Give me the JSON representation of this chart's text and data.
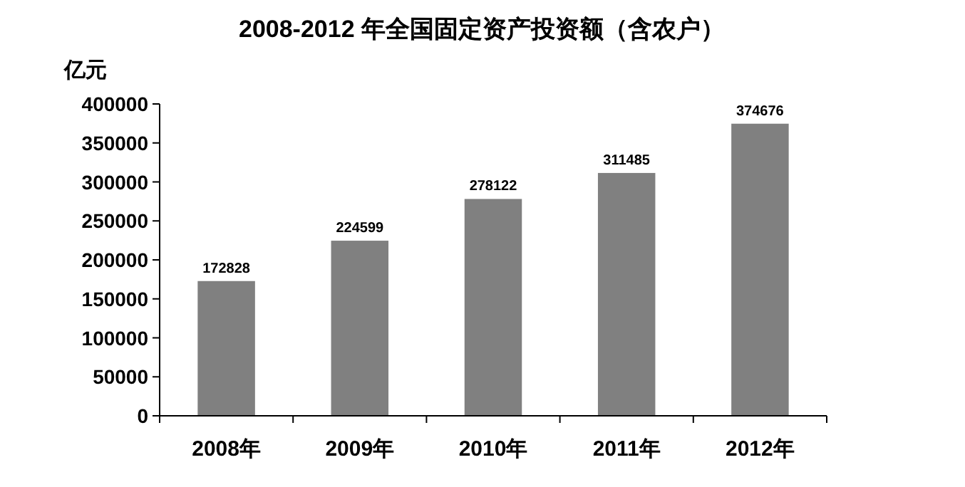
{
  "chart_data": {
    "type": "bar",
    "title": "2008-2012 年全国固定资产投资额（含农户）",
    "ylabel": "亿元",
    "categories": [
      "2008年",
      "2009年",
      "2010年",
      "2011年",
      "2012年"
    ],
    "values": [
      172828,
      224599,
      278122,
      311485,
      374676
    ],
    "color": "#808080",
    "ylim": [
      0,
      400000
    ],
    "yticks": [
      0,
      50000,
      100000,
      150000,
      200000,
      250000,
      300000,
      350000,
      400000
    ],
    "data_labels": true
  }
}
